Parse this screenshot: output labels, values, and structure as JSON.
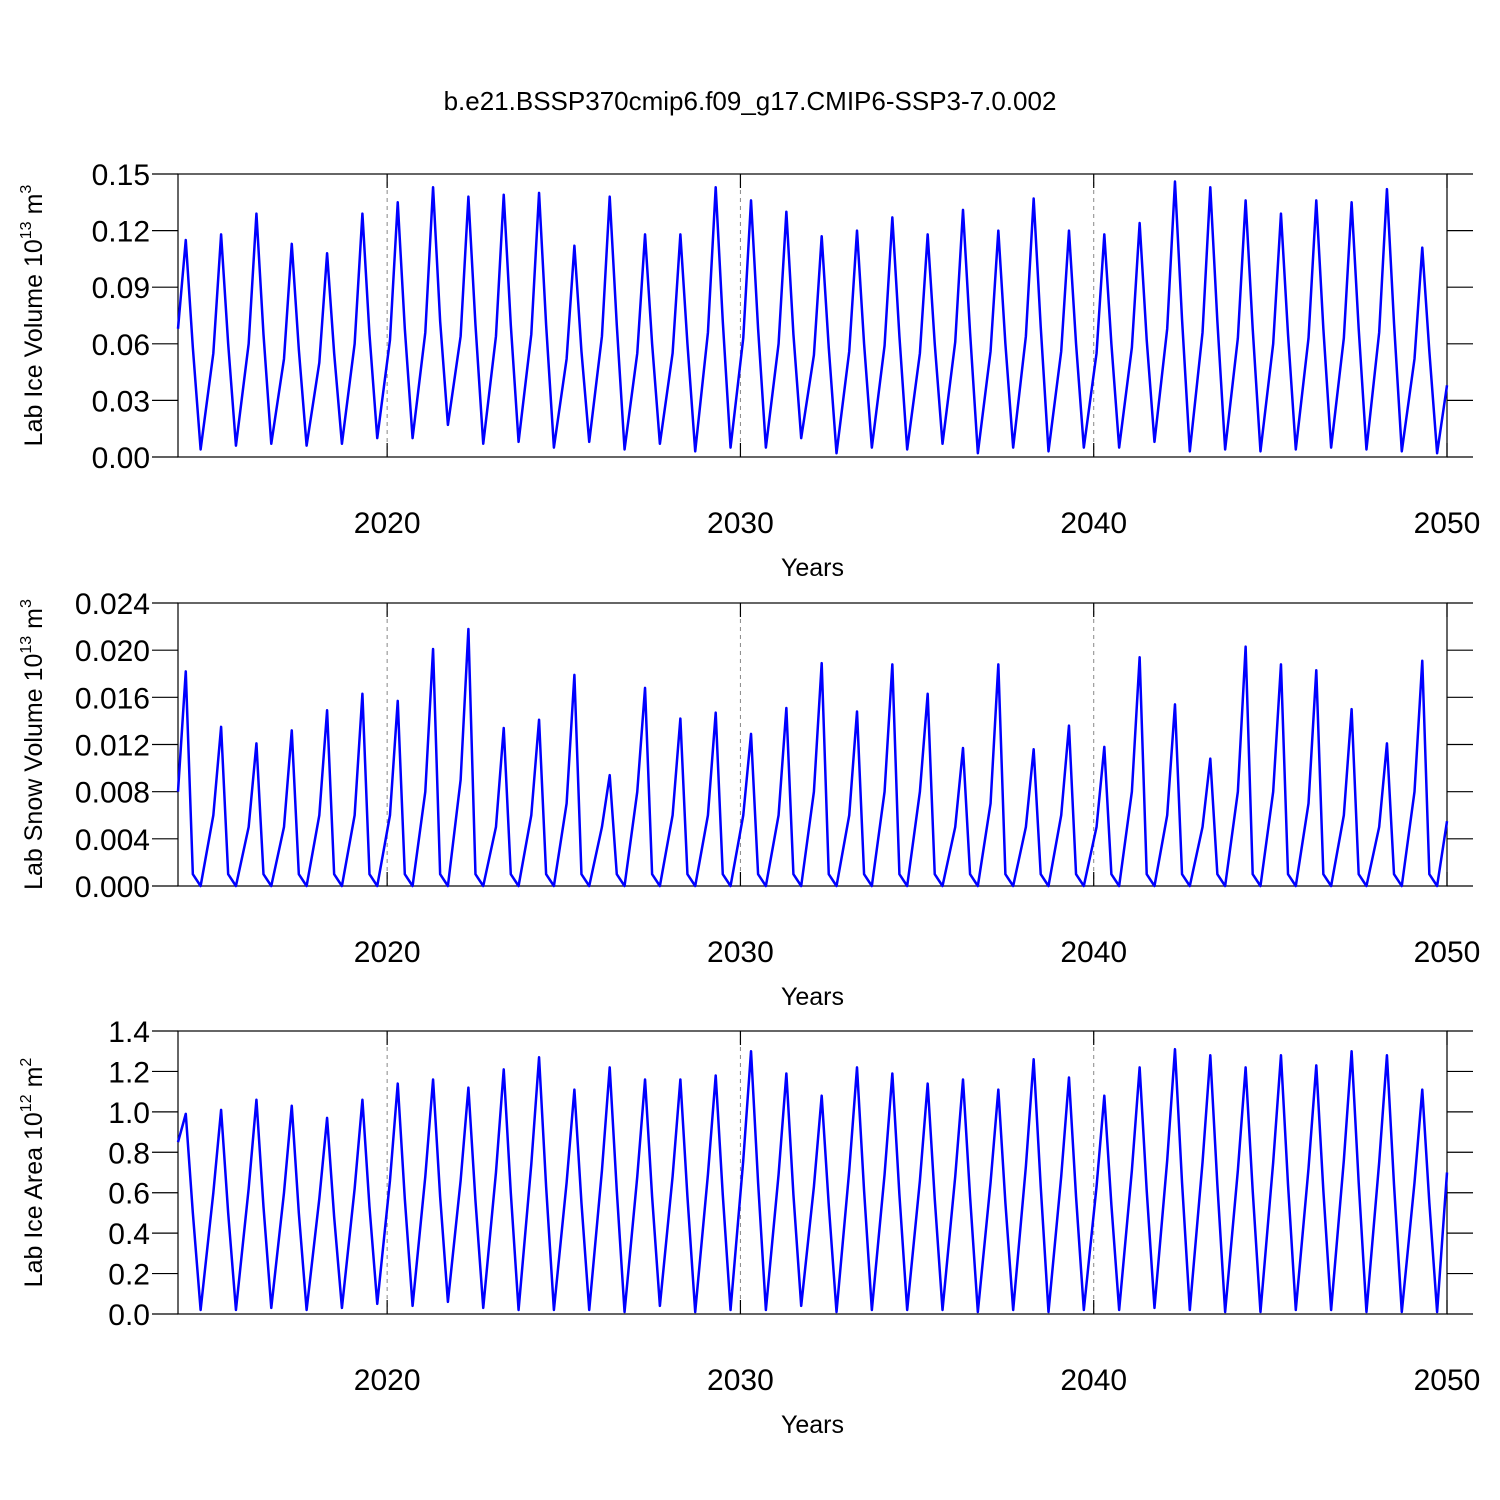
{
  "title": "b.e21.BSSP370cmip6.f09_g17.CMIP6-SSP3-7.0.002",
  "chart_data": [
    {
      "type": "line",
      "ylabel": "Lab Ice Volume 10",
      "ylabel_exponent": "13",
      "ylabel_unit": "m",
      "ylabel_unit_exponent": "3",
      "xlabel": "Years",
      "xlim": [
        2014.08,
        2050
      ],
      "xticks": [
        2020,
        2030,
        2040,
        2050
      ],
      "grid": true,
      "ylim": [
        0,
        0.15
      ],
      "yticks": [
        {
          "value": 0,
          "label": "0.00"
        },
        0.03,
        0.06,
        0.09,
        0.12,
        0.15
      ],
      "x": [
        2014.08,
        2014.3,
        2014.5,
        2014.72,
        2015.08,
        2015.3,
        2015.5,
        2015.72,
        2016.08,
        2016.3,
        2016.5,
        2016.72,
        2017.08,
        2017.3,
        2017.5,
        2017.72,
        2018.08,
        2018.3,
        2018.5,
        2018.72,
        2019.08,
        2019.3,
        2019.5,
        2019.72,
        2020.08,
        2020.3,
        2020.5,
        2020.72,
        2021.08,
        2021.3,
        2021.5,
        2021.72,
        2022.08,
        2022.3,
        2022.5,
        2022.72,
        2023.08,
        2023.3,
        2023.5,
        2023.72,
        2024.08,
        2024.3,
        2024.5,
        2024.72,
        2025.08,
        2025.3,
        2025.5,
        2025.72,
        2026.08,
        2026.3,
        2026.5,
        2026.72,
        2027.08,
        2027.3,
        2027.5,
        2027.72,
        2028.08,
        2028.3,
        2028.5,
        2028.72,
        2029.08,
        2029.3,
        2029.5,
        2029.72,
        2030.08,
        2030.3,
        2030.5,
        2030.72,
        2031.08,
        2031.3,
        2031.5,
        2031.72,
        2032.08,
        2032.3,
        2032.5,
        2032.72,
        2033.08,
        2033.3,
        2033.5,
        2033.72,
        2034.08,
        2034.3,
        2034.5,
        2034.72,
        2035.08,
        2035.3,
        2035.5,
        2035.72,
        2036.08,
        2036.3,
        2036.5,
        2036.72,
        2037.08,
        2037.3,
        2037.5,
        2037.72,
        2038.08,
        2038.3,
        2038.5,
        2038.72,
        2039.08,
        2039.3,
        2039.5,
        2039.72,
        2040.08,
        2040.3,
        2040.5,
        2040.72,
        2041.08,
        2041.3,
        2041.5,
        2041.72,
        2042.08,
        2042.3,
        2042.5,
        2042.72,
        2043.08,
        2043.3,
        2043.5,
        2043.72,
        2044.08,
        2044.3,
        2044.5,
        2044.72,
        2045.08,
        2045.3,
        2045.5,
        2045.72,
        2046.08,
        2046.3,
        2046.5,
        2046.72,
        2047.08,
        2047.3,
        2047.5,
        2047.72,
        2048.08,
        2048.3,
        2048.5,
        2048.72,
        2049.08,
        2049.3,
        2049.5,
        2049.72,
        2050
      ],
      "series": [
        {
          "color": "#0000ff",
          "values": [
            0.068,
            0.115,
            0.058,
            0.004,
            0.055,
            0.118,
            0.06,
            0.006,
            0.06,
            0.129,
            0.065,
            0.007,
            0.052,
            0.113,
            0.057,
            0.006,
            0.05,
            0.108,
            0.055,
            0.007,
            0.06,
            0.129,
            0.065,
            0.01,
            0.062,
            0.135,
            0.068,
            0.01,
            0.066,
            0.143,
            0.072,
            0.017,
            0.064,
            0.138,
            0.07,
            0.007,
            0.064,
            0.139,
            0.07,
            0.008,
            0.065,
            0.14,
            0.07,
            0.005,
            0.052,
            0.112,
            0.056,
            0.008,
            0.064,
            0.138,
            0.07,
            0.004,
            0.055,
            0.118,
            0.06,
            0.007,
            0.055,
            0.118,
            0.06,
            0.003,
            0.066,
            0.143,
            0.072,
            0.005,
            0.063,
            0.136,
            0.068,
            0.005,
            0.06,
            0.13,
            0.065,
            0.01,
            0.054,
            0.117,
            0.058,
            0.002,
            0.056,
            0.12,
            0.06,
            0.005,
            0.059,
            0.127,
            0.064,
            0.004,
            0.055,
            0.118,
            0.06,
            0.007,
            0.061,
            0.131,
            0.066,
            0.002,
            0.056,
            0.12,
            0.06,
            0.005,
            0.064,
            0.137,
            0.069,
            0.003,
            0.056,
            0.12,
            0.06,
            0.005,
            0.055,
            0.118,
            0.06,
            0.005,
            0.058,
            0.124,
            0.062,
            0.008,
            0.068,
            0.146,
            0.073,
            0.003,
            0.066,
            0.143,
            0.072,
            0.004,
            0.063,
            0.136,
            0.068,
            0.003,
            0.06,
            0.129,
            0.065,
            0.004,
            0.063,
            0.136,
            0.068,
            0.005,
            0.063,
            0.135,
            0.068,
            0.004,
            0.066,
            0.142,
            0.071,
            0.003,
            0.052,
            0.111,
            0.056,
            0.002,
            0.038
          ]
        }
      ]
    },
    {
      "type": "line",
      "ylabel": "Lab Snow Volume 10",
      "ylabel_exponent": "13",
      "ylabel_unit": "m",
      "ylabel_unit_exponent": "3",
      "xlabel": "Years",
      "xlim": [
        2014.08,
        2050
      ],
      "xticks": [
        2020,
        2030,
        2040,
        2050
      ],
      "grid": true,
      "ylim": [
        0,
        0.024
      ],
      "yticks": [
        {
          "value": 0,
          "label": "0.000"
        },
        0.004,
        0.008,
        0.012,
        0.016,
        {
          "value": 0.02,
          "label": "0.020"
        },
        0.024
      ],
      "x": [
        2014.08,
        2014.3,
        2014.5,
        2014.72,
        2015.08,
        2015.3,
        2015.5,
        2015.72,
        2016.08,
        2016.3,
        2016.5,
        2016.72,
        2017.08,
        2017.3,
        2017.5,
        2017.72,
        2018.08,
        2018.3,
        2018.5,
        2018.72,
        2019.08,
        2019.3,
        2019.5,
        2019.72,
        2020.08,
        2020.3,
        2020.5,
        2020.72,
        2021.08,
        2021.3,
        2021.5,
        2021.72,
        2022.08,
        2022.3,
        2022.5,
        2022.72,
        2023.08,
        2023.3,
        2023.5,
        2023.72,
        2024.08,
        2024.3,
        2024.5,
        2024.72,
        2025.08,
        2025.3,
        2025.5,
        2025.72,
        2026.08,
        2026.3,
        2026.5,
        2026.72,
        2027.08,
        2027.3,
        2027.5,
        2027.72,
        2028.08,
        2028.3,
        2028.5,
        2028.72,
        2029.08,
        2029.3,
        2029.5,
        2029.72,
        2030.08,
        2030.3,
        2030.5,
        2030.72,
        2031.08,
        2031.3,
        2031.5,
        2031.72,
        2032.08,
        2032.3,
        2032.5,
        2032.72,
        2033.08,
        2033.3,
        2033.5,
        2033.72,
        2034.08,
        2034.3,
        2034.5,
        2034.72,
        2035.08,
        2035.3,
        2035.5,
        2035.72,
        2036.08,
        2036.3,
        2036.5,
        2036.72,
        2037.08,
        2037.3,
        2037.5,
        2037.72,
        2038.08,
        2038.3,
        2038.5,
        2038.72,
        2039.08,
        2039.3,
        2039.5,
        2039.72,
        2040.08,
        2040.3,
        2040.5,
        2040.72,
        2041.08,
        2041.3,
        2041.5,
        2041.72,
        2042.08,
        2042.3,
        2042.5,
        2042.72,
        2043.08,
        2043.3,
        2043.5,
        2043.72,
        2044.08,
        2044.3,
        2044.5,
        2044.72,
        2045.08,
        2045.3,
        2045.5,
        2045.72,
        2046.08,
        2046.3,
        2046.5,
        2046.72,
        2047.08,
        2047.3,
        2047.5,
        2047.72,
        2048.08,
        2048.3,
        2048.5,
        2048.72,
        2049.08,
        2049.3,
        2049.5,
        2049.72,
        2050
      ],
      "series": [
        {
          "color": "#0000ff",
          "values": [
            0.008,
            0.0182,
            0.001,
            0,
            0.006,
            0.0135,
            0.001,
            0,
            0.005,
            0.0121,
            0.001,
            0,
            0.005,
            0.0132,
            0.001,
            0,
            0.006,
            0.0149,
            0.001,
            0,
            0.006,
            0.0163,
            0.001,
            0,
            0.006,
            0.0157,
            0.001,
            0,
            0.008,
            0.0201,
            0.001,
            0,
            0.009,
            0.0218,
            0.001,
            0,
            0.005,
            0.0134,
            0.001,
            0,
            0.006,
            0.0141,
            0.001,
            0,
            0.007,
            0.0179,
            0.001,
            0,
            0.005,
            0.0094,
            0.001,
            0,
            0.008,
            0.0168,
            0.001,
            0,
            0.006,
            0.0142,
            0.001,
            0,
            0.006,
            0.0147,
            0.001,
            0,
            0.006,
            0.0129,
            0.001,
            0,
            0.006,
            0.0151,
            0.001,
            0,
            0.008,
            0.0189,
            0.001,
            0,
            0.006,
            0.0148,
            0.001,
            0,
            0.008,
            0.0188,
            0.001,
            0,
            0.008,
            0.0163,
            0.001,
            0,
            0.005,
            0.0117,
            0.001,
            0,
            0.007,
            0.0188,
            0.001,
            0,
            0.005,
            0.0116,
            0.001,
            0,
            0.006,
            0.0136,
            0.001,
            0,
            0.005,
            0.0118,
            0.001,
            0,
            0.008,
            0.0194,
            0.001,
            0,
            0.006,
            0.0154,
            0.001,
            0,
            0.005,
            0.0108,
            0.001,
            0,
            0.008,
            0.0203,
            0.001,
            0,
            0.008,
            0.0188,
            0.001,
            0,
            0.007,
            0.0183,
            0.001,
            0,
            0.006,
            0.015,
            0.001,
            0,
            0.005,
            0.0121,
            0.001,
            0,
            0.008,
            0.0191,
            0.001,
            0,
            0.0055
          ]
        }
      ]
    },
    {
      "type": "line",
      "ylabel": "Lab Ice Area 10",
      "ylabel_exponent": "12",
      "ylabel_unit": "m",
      "ylabel_unit_exponent": "2",
      "xlabel": "Years",
      "xlim": [
        2014.08,
        2050
      ],
      "xticks": [
        2020,
        2030,
        2040,
        2050
      ],
      "grid": true,
      "ylim": [
        0,
        1.4
      ],
      "yticks": [
        {
          "value": 0,
          "label": "0.0"
        },
        0.2,
        0.4,
        0.6,
        0.8,
        {
          "value": 1,
          "label": "1.0"
        },
        1.2,
        1.4
      ],
      "x": [
        2014.08,
        2014.3,
        2014.5,
        2014.72,
        2015.08,
        2015.3,
        2015.5,
        2015.72,
        2016.08,
        2016.3,
        2016.5,
        2016.72,
        2017.08,
        2017.3,
        2017.5,
        2017.72,
        2018.08,
        2018.3,
        2018.5,
        2018.72,
        2019.08,
        2019.3,
        2019.5,
        2019.72,
        2020.08,
        2020.3,
        2020.5,
        2020.72,
        2021.08,
        2021.3,
        2021.5,
        2021.72,
        2022.08,
        2022.3,
        2022.5,
        2022.72,
        2023.08,
        2023.3,
        2023.5,
        2023.72,
        2024.08,
        2024.3,
        2024.5,
        2024.72,
        2025.08,
        2025.3,
        2025.5,
        2025.72,
        2026.08,
        2026.3,
        2026.5,
        2026.72,
        2027.08,
        2027.3,
        2027.5,
        2027.72,
        2028.08,
        2028.3,
        2028.5,
        2028.72,
        2029.08,
        2029.3,
        2029.5,
        2029.72,
        2030.08,
        2030.3,
        2030.5,
        2030.72,
        2031.08,
        2031.3,
        2031.5,
        2031.72,
        2032.08,
        2032.3,
        2032.5,
        2032.72,
        2033.08,
        2033.3,
        2033.5,
        2033.72,
        2034.08,
        2034.3,
        2034.5,
        2034.72,
        2035.08,
        2035.3,
        2035.5,
        2035.72,
        2036.08,
        2036.3,
        2036.5,
        2036.72,
        2037.08,
        2037.3,
        2037.5,
        2037.72,
        2038.08,
        2038.3,
        2038.5,
        2038.72,
        2039.08,
        2039.3,
        2039.5,
        2039.72,
        2040.08,
        2040.3,
        2040.5,
        2040.72,
        2041.08,
        2041.3,
        2041.5,
        2041.72,
        2042.08,
        2042.3,
        2042.5,
        2042.72,
        2043.08,
        2043.3,
        2043.5,
        2043.72,
        2044.08,
        2044.3,
        2044.5,
        2044.72,
        2045.08,
        2045.3,
        2045.5,
        2045.72,
        2046.08,
        2046.3,
        2046.5,
        2046.72,
        2047.08,
        2047.3,
        2047.5,
        2047.72,
        2048.08,
        2048.3,
        2048.5,
        2048.72,
        2049.08,
        2049.3,
        2049.5,
        2049.72,
        2050
      ],
      "series": [
        {
          "color": "#0000ff",
          "values": [
            0.85,
            0.99,
            0.5,
            0.02,
            0.6,
            1.01,
            0.5,
            0.02,
            0.62,
            1.06,
            0.53,
            0.03,
            0.6,
            1.03,
            0.5,
            0.02,
            0.57,
            0.97,
            0.48,
            0.03,
            0.62,
            1.06,
            0.53,
            0.05,
            0.66,
            1.14,
            0.57,
            0.04,
            0.68,
            1.16,
            0.58,
            0.06,
            0.66,
            1.12,
            0.56,
            0.03,
            0.7,
            1.21,
            0.6,
            0.02,
            0.74,
            1.27,
            0.63,
            0.02,
            0.65,
            1.11,
            0.55,
            0.02,
            0.71,
            1.22,
            0.61,
            0.01,
            0.68,
            1.16,
            0.58,
            0.04,
            0.68,
            1.16,
            0.58,
            0.01,
            0.69,
            1.18,
            0.59,
            0.02,
            0.76,
            1.3,
            0.65,
            0.02,
            0.69,
            1.19,
            0.59,
            0.04,
            0.63,
            1.08,
            0.54,
            0.01,
            0.71,
            1.22,
            0.61,
            0.02,
            0.69,
            1.19,
            0.59,
            0.02,
            0.66,
            1.14,
            0.57,
            0.02,
            0.68,
            1.16,
            0.58,
            0.01,
            0.65,
            1.11,
            0.55,
            0.02,
            0.73,
            1.26,
            0.63,
            0.01,
            0.68,
            1.17,
            0.58,
            0.02,
            0.63,
            1.08,
            0.54,
            0.02,
            0.71,
            1.22,
            0.61,
            0.03,
            0.76,
            1.31,
            0.65,
            0.02,
            0.75,
            1.28,
            0.64,
            0.01,
            0.71,
            1.22,
            0.61,
            0.01,
            0.75,
            1.28,
            0.64,
            0.02,
            0.72,
            1.23,
            0.61,
            0.02,
            0.76,
            1.3,
            0.65,
            0.01,
            0.75,
            1.28,
            0.64,
            0.01,
            0.65,
            1.11,
            0.55,
            0.01,
            0.7
          ]
        }
      ]
    }
  ]
}
